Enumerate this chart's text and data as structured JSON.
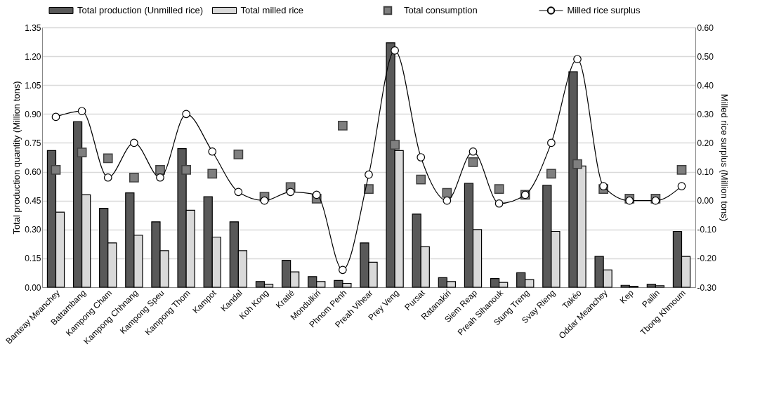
{
  "chart_data": {
    "type": "bar",
    "ylabel": "Total production quantity (Million tons)",
    "y2label": "Milled rice surplus (Million tons)",
    "categories": [
      "Banteay Meanchey",
      "Battambang",
      "Kampong Cham",
      "Kampong Chhnang",
      "Kampong Speu",
      "Kampong Thom",
      "Kampot",
      "Kandal",
      "Koh Kong",
      "Kratié",
      "Mondulkiri",
      "Phnom Penh",
      "Preah Vihear",
      "Prey Veng",
      "Pursat",
      "Ratanakiri",
      "Siem Reap",
      "Preah Sihanouk",
      "Stung Treng",
      "Svay Rieng",
      "Takéo",
      "Oddar Meanchey",
      "Kep",
      "Pailin",
      "Tbong Khmoum"
    ],
    "series": [
      {
        "name": "Total production (Unmilled rice)",
        "color": "#595959",
        "values": [
          0.71,
          0.86,
          0.41,
          0.49,
          0.34,
          0.72,
          0.47,
          0.34,
          0.03,
          0.14,
          0.055,
          0.035,
          0.23,
          1.27,
          0.38,
          0.05,
          0.54,
          0.045,
          0.075,
          0.53,
          1.12,
          0.16,
          0.01,
          0.015,
          0.29
        ]
      },
      {
        "name": "Total milled rice",
        "color": "#d9d9d9",
        "values": [
          0.39,
          0.48,
          0.23,
          0.27,
          0.19,
          0.4,
          0.26,
          0.19,
          0.015,
          0.08,
          0.03,
          0.02,
          0.13,
          0.71,
          0.21,
          0.03,
          0.3,
          0.025,
          0.04,
          0.29,
          0.63,
          0.09,
          0.005,
          0.008,
          0.16
        ]
      },
      {
        "name": "Total consumption",
        "type": "scatter",
        "marker": "square",
        "color": "#7f7f7f",
        "values": [
          0.61,
          0.7,
          0.67,
          0.57,
          0.61,
          0.61,
          0.59,
          0.69,
          0.47,
          0.52,
          0.46,
          0.84,
          0.51,
          0.74,
          0.56,
          0.49,
          0.65,
          0.51,
          0.48,
          0.59,
          0.64,
          0.51,
          0.46,
          0.46,
          0.61
        ]
      },
      {
        "name": "Milled rice surplus",
        "type": "line",
        "axis": "y2",
        "marker": "circle",
        "color": "#000000",
        "values": [
          0.29,
          0.31,
          0.08,
          0.2,
          0.08,
          0.3,
          0.17,
          0.03,
          0.0,
          0.03,
          0.02,
          -0.24,
          0.09,
          0.52,
          0.15,
          0.0,
          0.17,
          -0.01,
          0.02,
          0.2,
          0.49,
          0.05,
          0.0,
          0.0,
          0.05
        ]
      }
    ],
    "ylim": [
      0,
      1.35
    ],
    "yticks": [
      {
        "value": 0,
        "label": "0.00"
      },
      {
        "value": 0.15,
        "label": "0.15"
      },
      {
        "value": 0.3,
        "label": "0.30"
      },
      {
        "value": 0.45,
        "label": "0.45"
      },
      {
        "value": 0.6,
        "label": "0.60"
      },
      {
        "value": 0.75,
        "label": "0.75"
      },
      {
        "value": 0.9,
        "label": "0.90"
      },
      {
        "value": 1.05,
        "label": "1.05"
      },
      {
        "value": 1.2,
        "label": "1.20"
      },
      {
        "value": 1.35,
        "label": "1.35"
      }
    ],
    "y2lim": [
      -0.3,
      0.6
    ],
    "y2ticks": [
      {
        "value": -0.3,
        "label": "-0.30"
      },
      {
        "value": -0.2,
        "label": "-0.20"
      },
      {
        "value": -0.1,
        "label": "-0.10"
      },
      {
        "value": 0,
        "label": "0.00"
      },
      {
        "value": 0.1,
        "label": "0.10"
      },
      {
        "value": 0.2,
        "label": "0.20"
      },
      {
        "value": 0.3,
        "label": "0.30"
      },
      {
        "value": 0.4,
        "label": "0.40"
      },
      {
        "value": 0.5,
        "label": "0.50"
      },
      {
        "value": 0.6,
        "label": "0.60"
      }
    ],
    "grid": "y",
    "legend": "top"
  }
}
